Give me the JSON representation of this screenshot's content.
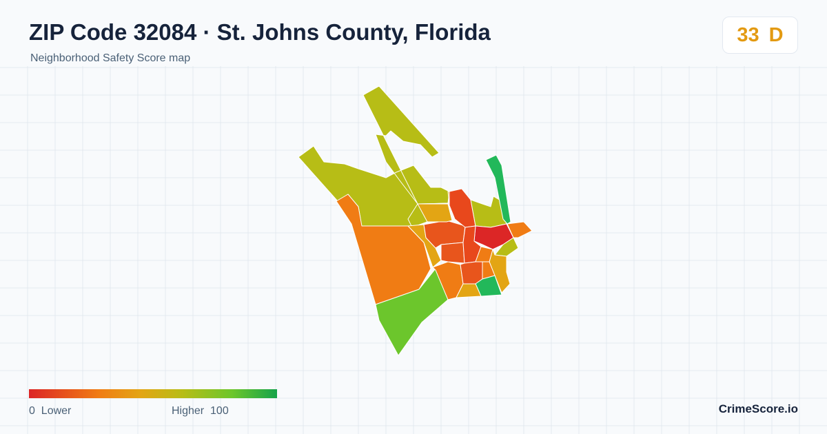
{
  "header": {
    "title": "ZIP Code 32084 · St. Johns County, Florida",
    "subtitle": "Neighborhood Safety Score map"
  },
  "score": {
    "value": 33,
    "grade": "D"
  },
  "legend": {
    "min": 0,
    "min_label": "Lower",
    "max_label": "Higher",
    "max": 100
  },
  "brand": "CrimeScore.io"
}
